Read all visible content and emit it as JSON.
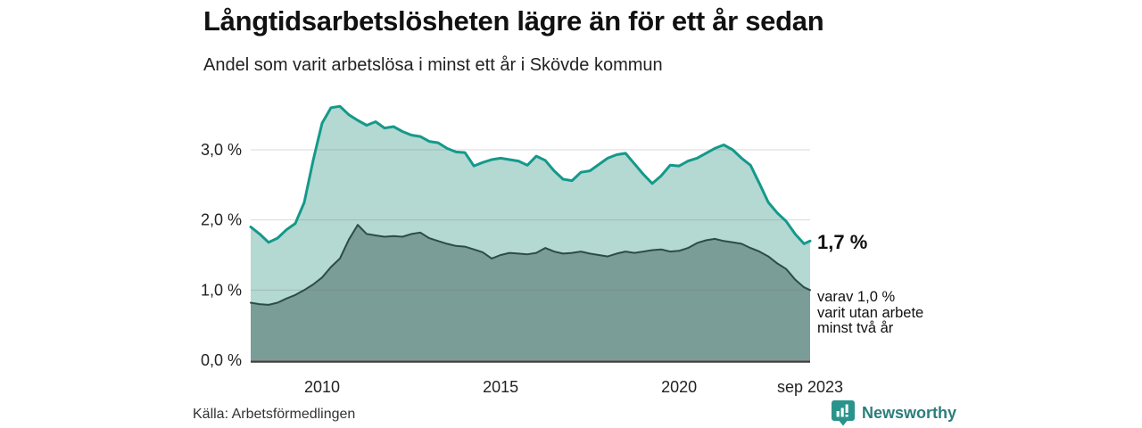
{
  "chart_data": {
    "type": "area",
    "title": "Långtidsarbetslösheten lägre än för ett år sedan",
    "subtitle": "Andel som varit arbetslösa i minst ett år i Skövde kommun",
    "xlabel": "",
    "ylabel": "",
    "x_range": [
      2008,
      2023.67
    ],
    "ylim": [
      0,
      3.75
    ],
    "grid": "horizontal",
    "legend_position": "none",
    "y_ticks": [
      {
        "value": 0,
        "label": "0,0 %"
      },
      {
        "value": 1,
        "label": "1,0 %"
      },
      {
        "value": 2,
        "label": "2,0 %"
      },
      {
        "value": 3,
        "label": "3,0 %"
      }
    ],
    "x_ticks": [
      {
        "value": 2010,
        "label": "2010"
      },
      {
        "value": 2015,
        "label": "2015"
      },
      {
        "value": 2020,
        "label": "2020"
      },
      {
        "value": 2023.67,
        "label": "sep 2023"
      }
    ],
    "x": [
      2008,
      2008.25,
      2008.5,
      2008.75,
      2009,
      2009.25,
      2009.5,
      2009.75,
      2010,
      2010.25,
      2010.5,
      2010.75,
      2011,
      2011.25,
      2011.5,
      2011.75,
      2012,
      2012.25,
      2012.5,
      2012.75,
      2013,
      2013.25,
      2013.5,
      2013.75,
      2014,
      2014.25,
      2014.5,
      2014.75,
      2015,
      2015.25,
      2015.5,
      2015.75,
      2016,
      2016.25,
      2016.5,
      2016.75,
      2017,
      2017.25,
      2017.5,
      2017.75,
      2018,
      2018.25,
      2018.5,
      2018.75,
      2019,
      2019.25,
      2019.5,
      2019.75,
      2020,
      2020.25,
      2020.5,
      2020.75,
      2021,
      2021.25,
      2021.5,
      2021.75,
      2022,
      2022.25,
      2022.5,
      2022.75,
      2023,
      2023.25,
      2023.5,
      2023.67
    ],
    "series": [
      {
        "name": "Arbetslösa minst ett år",
        "line_color": "#14998a",
        "fill_color": "#b4d8d2",
        "line_width": 3,
        "end_value_label": "1,7 %",
        "values": [
          1.9,
          1.8,
          1.68,
          1.74,
          1.86,
          1.95,
          2.25,
          2.85,
          3.38,
          3.6,
          3.62,
          3.5,
          3.42,
          3.35,
          3.4,
          3.31,
          3.33,
          3.26,
          3.21,
          3.19,
          3.12,
          3.1,
          3.02,
          2.97,
          2.96,
          2.77,
          2.82,
          2.86,
          2.88,
          2.86,
          2.84,
          2.78,
          2.91,
          2.85,
          2.7,
          2.58,
          2.56,
          2.68,
          2.7,
          2.79,
          2.88,
          2.93,
          2.95,
          2.8,
          2.65,
          2.52,
          2.63,
          2.78,
          2.77,
          2.84,
          2.88,
          2.95,
          3.02,
          3.07,
          3.0,
          2.88,
          2.78,
          2.52,
          2.25,
          2.1,
          1.98,
          1.8,
          1.66,
          1.7
        ]
      },
      {
        "name": "Varav utan arbete minst två år",
        "line_color": "#2d4c47",
        "fill_color": "#7b9d97",
        "line_width": 2,
        "end_value_label": "1,0 %",
        "values": [
          0.82,
          0.8,
          0.79,
          0.82,
          0.88,
          0.93,
          1.0,
          1.08,
          1.18,
          1.33,
          1.45,
          1.72,
          1.93,
          1.8,
          1.78,
          1.76,
          1.77,
          1.76,
          1.8,
          1.82,
          1.74,
          1.7,
          1.66,
          1.63,
          1.62,
          1.58,
          1.54,
          1.45,
          1.5,
          1.53,
          1.52,
          1.51,
          1.53,
          1.6,
          1.55,
          1.52,
          1.53,
          1.55,
          1.52,
          1.5,
          1.48,
          1.52,
          1.55,
          1.53,
          1.55,
          1.57,
          1.58,
          1.55,
          1.56,
          1.6,
          1.67,
          1.71,
          1.73,
          1.7,
          1.68,
          1.66,
          1.6,
          1.55,
          1.48,
          1.38,
          1.3,
          1.15,
          1.04,
          1.0
        ]
      }
    ]
  },
  "annotations": {
    "latest_total": "1,7 %",
    "breakdown_lines": [
      "varav 1,0 %",
      "varit utan arbete",
      "minst två år"
    ]
  },
  "footer": {
    "source": "Källa: Arbetsförmedlingen",
    "brand": "Newsworthy",
    "brand_icon": "bar-chart-speech-bubble-icon"
  },
  "colors": {
    "background": "#ffffff",
    "gridline": "#e2e2e2",
    "axis_line": "#3f3f3f",
    "title_text": "#111111",
    "brand_teal": "#2b7e7b",
    "brand_icon_teal": "#2a948c"
  }
}
